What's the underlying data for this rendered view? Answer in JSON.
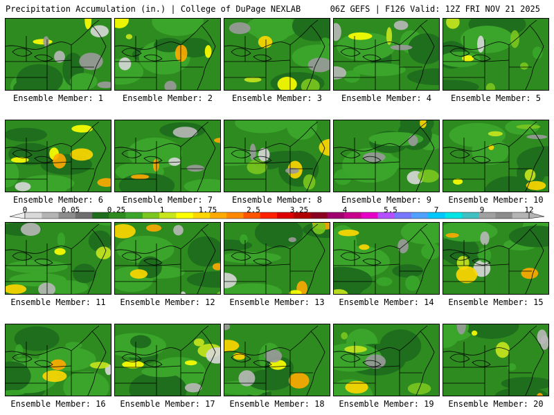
{
  "header": {
    "left": "Precipitation Accumulation (in.) | College of DuPage NEXLAB",
    "right": "06Z GEFS | F126 Valid: 12Z FRI NOV 21 2025"
  },
  "panels": [
    {
      "caption": "Ensemble Member: 1"
    },
    {
      "caption": "Ensemble Member: 2"
    },
    {
      "caption": "Ensemble Member: 3"
    },
    {
      "caption": "Ensemble Member: 4"
    },
    {
      "caption": "Ensemble Member: 5"
    },
    {
      "caption": "Ensemble Member: 6"
    },
    {
      "caption": "Ensemble Member: 7"
    },
    {
      "caption": "Ensemble Member: 8"
    },
    {
      "caption": "Ensemble Member: 9"
    },
    {
      "caption": "Ensemble Member: 10"
    },
    {
      "caption": "Ensemble Member: 11"
    },
    {
      "caption": "Ensemble Member: 12"
    },
    {
      "caption": "Ensemble Member: 13"
    },
    {
      "caption": "Ensemble Member: 14"
    },
    {
      "caption": "Ensemble Member: 15"
    },
    {
      "caption": "Ensemble Member: 16"
    },
    {
      "caption": "Ensemble Member: 17"
    },
    {
      "caption": "Ensemble Member: 18"
    },
    {
      "caption": "Ensemble Member: 19"
    },
    {
      "caption": "Ensemble Member: 20"
    }
  ],
  "scale": {
    "labels": [
      "0",
      "0.05",
      "0.25",
      "1",
      "1.75",
      "2.5",
      "3.25",
      "4",
      "5.5",
      "7",
      "9",
      "12"
    ],
    "colors": [
      "#d9d9d9",
      "#b4b4b4",
      "#8c8c8c",
      "#6e6e6e",
      "#1e6e1e",
      "#2e8b1f",
      "#3aa52a",
      "#7bc61f",
      "#c8e61e",
      "#ffff00",
      "#ffd700",
      "#ffaa00",
      "#ff8800",
      "#ff5500",
      "#ff2200",
      "#dd0000",
      "#b00000",
      "#8b0020",
      "#a0006e",
      "#c8008c",
      "#e600c8",
      "#b450ff",
      "#7878ff",
      "#50a0ff",
      "#00c8ff",
      "#00e6e6",
      "#40c0c0",
      "#a0a0a0",
      "#8c8c8c",
      "#b4b4b4"
    ]
  }
}
